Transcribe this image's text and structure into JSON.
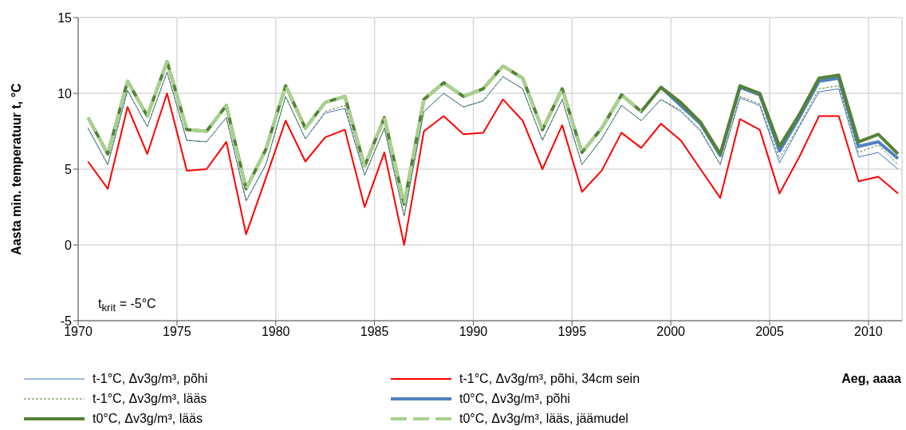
{
  "chart_data": {
    "type": "line",
    "xlabel": "Aeg, aaaa",
    "ylabel": "Aasta min. temperatuur t, °C",
    "annotations": [
      "t$_{krit}$ = -5°C"
    ],
    "x": [
      1970.5,
      1971.5,
      1972.5,
      1973.5,
      1974.5,
      1975.5,
      1976.5,
      1977.5,
      1978.5,
      1979.5,
      1980.5,
      1981.5,
      1982.5,
      1983.5,
      1984.5,
      1985.5,
      1986.5,
      1987.5,
      1988.5,
      1989.5,
      1990.5,
      1991.5,
      1992.5,
      1993.5,
      1994.5,
      1995.5,
      1996.5,
      1997.5,
      1998.5,
      1999.5,
      2000.5,
      2001.5,
      2002.5,
      2003.5,
      2004.5,
      2005.5,
      2006.5,
      2007.5,
      2008.5,
      2009.5,
      2010.5,
      2011.5
    ],
    "xlim": [
      1970,
      2011.7
    ],
    "xticks": [
      1970,
      1975,
      1980,
      1985,
      1990,
      1995,
      2000,
      2005,
      2010
    ],
    "ylim": [
      -5,
      15
    ],
    "yticks": [
      -5,
      0,
      5,
      10,
      15
    ],
    "grid": true,
    "legend": "bottom",
    "marker": "none",
    "series": [
      {
        "name": "t-1°C, Δv3g/m³, põhi",
        "color": "#4472c4",
        "line_style": "solid",
        "values": [
          7.7,
          5.3,
          10.2,
          7.8,
          11.4,
          6.9,
          6.8,
          8.4,
          2.9,
          5.3,
          9.8,
          7.0,
          8.7,
          9.0,
          4.6,
          7.7,
          1.9,
          8.8,
          10.0,
          9.1,
          9.5,
          11.1,
          10.3,
          6.9,
          9.6,
          5.3,
          7.0,
          9.2,
          8.2,
          9.6,
          8.8,
          7.5,
          5.3,
          9.7,
          9.2,
          5.4,
          7.8,
          10.1,
          10.3,
          5.8,
          6.1,
          5.0
        ]
      },
      {
        "name": "t-1°C, Δv3g/m³, põhi, 34cm sein",
        "color": "#ff0000",
        "line_style": "solid",
        "values": [
          5.5,
          3.7,
          9.1,
          6.0,
          10.0,
          4.9,
          5.0,
          6.8,
          0.7,
          4.4,
          8.2,
          5.5,
          7.1,
          7.6,
          2.5,
          6.1,
          0.0,
          7.5,
          8.5,
          7.3,
          7.4,
          9.6,
          8.2,
          5.0,
          7.9,
          3.5,
          4.9,
          7.4,
          6.4,
          8.0,
          6.9,
          5.0,
          3.1,
          8.3,
          7.6,
          3.4,
          5.8,
          8.5,
          8.5,
          4.2,
          4.5,
          3.4
        ]
      },
      {
        "name": "t-1°C, Δv3g/m³, lääs",
        "color": "#548235",
        "line_style": "dashed",
        "values": [
          7.7,
          5.3,
          10.2,
          7.8,
          11.4,
          6.9,
          6.8,
          8.4,
          2.9,
          5.3,
          9.8,
          7.0,
          8.8,
          9.2,
          4.6,
          7.7,
          1.9,
          8.8,
          10.0,
          9.1,
          9.5,
          11.1,
          10.3,
          6.9,
          9.6,
          5.3,
          7.0,
          9.2,
          8.2,
          9.6,
          8.9,
          7.6,
          5.3,
          9.8,
          9.3,
          5.7,
          7.9,
          10.3,
          10.5,
          6.1,
          6.6,
          5.3
        ]
      },
      {
        "name": "t0°C, Δv3g/m³, põhi",
        "color": "#4f81bd",
        "line_style": "solid",
        "values": [
          null,
          null,
          null,
          null,
          null,
          null,
          null,
          null,
          null,
          null,
          null,
          null,
          null,
          null,
          null,
          null,
          null,
          null,
          null,
          null,
          null,
          null,
          null,
          null,
          null,
          null,
          null,
          null,
          null,
          10.4,
          9.2,
          8.0,
          5.9,
          10.4,
          9.9,
          6.2,
          8.4,
          10.8,
          11.0,
          6.5,
          6.8,
          5.7
        ]
      },
      {
        "name": "t0°C, Δv3g/m³, lääs",
        "color": "#548235",
        "line_style": "solid",
        "values": [
          8.4,
          6.0,
          10.8,
          8.5,
          12.1,
          7.6,
          7.5,
          9.2,
          3.7,
          6.3,
          10.5,
          7.7,
          9.4,
          9.8,
          5.2,
          8.4,
          2.7,
          9.6,
          10.7,
          9.8,
          10.3,
          11.8,
          11.0,
          7.6,
          10.3,
          6.1,
          7.7,
          9.9,
          8.8,
          10.4,
          9.4,
          8.1,
          6.0,
          10.5,
          10.0,
          6.5,
          8.6,
          11.0,
          11.2,
          6.8,
          7.3,
          6.0
        ]
      },
      {
        "name": "t0°C, Δv3g/m³, lääs, jäämudel",
        "color": "#a9d18e",
        "line_style": "dashed",
        "values": [
          8.4,
          6.0,
          10.8,
          8.5,
          12.1,
          7.6,
          7.5,
          9.2,
          3.7,
          6.3,
          10.5,
          7.7,
          9.4,
          9.8,
          5.2,
          8.4,
          2.7,
          9.6,
          10.7,
          9.8,
          10.3,
          11.8,
          11.0,
          7.6,
          10.3,
          6.1,
          7.7,
          9.9,
          8.8,
          null,
          null,
          null,
          null,
          null,
          null,
          null,
          null,
          null,
          null,
          null,
          null,
          null
        ]
      }
    ]
  }
}
